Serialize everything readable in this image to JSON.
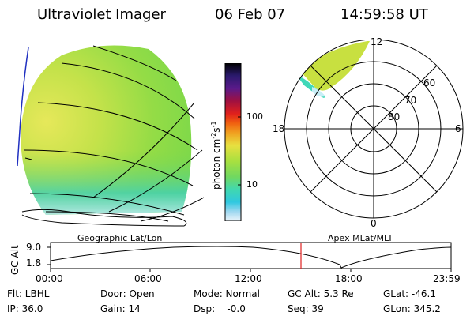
{
  "header": {
    "instrument": "Ultraviolet Imager",
    "date": "06 Feb 07",
    "time": "14:59:58 UT"
  },
  "globe_panel": {
    "label": "Geographic Lat/Lon"
  },
  "colorbar": {
    "unit_main": "photon cm",
    "unit_exp1": "-2",
    "unit_mid": "s",
    "unit_exp2": "-1",
    "ticks": [
      "100",
      "10"
    ],
    "colors": [
      "#000000",
      "#1a0a3a",
      "#2b1a6e",
      "#4a1a8a",
      "#7a1060",
      "#b0102a",
      "#e0201c",
      "#f05010",
      "#f08a10",
      "#f4c030",
      "#e8e040",
      "#c8e040",
      "#a0e040",
      "#70d860",
      "#40d8b0",
      "#30c8e0",
      "#a0d8f0",
      "#e8f4fb"
    ]
  },
  "polar_panel": {
    "label": "Apex  MLat/MLT",
    "mlt_labels": {
      "top": "12",
      "bottom": "0",
      "left": "18",
      "right": "6"
    },
    "lat_labels": [
      "60",
      "70",
      "80"
    ]
  },
  "altitude_strip": {
    "axis_label": "GC Alt",
    "y_ticks": [
      "9.0",
      "1.8"
    ],
    "x_ticks": [
      "00:00",
      "06:00",
      "12:00",
      "18:00",
      "23:59"
    ],
    "marker_time": "14:59:58",
    "marker_color": "#e02020"
  },
  "footer": {
    "flt": "Flt: LBHL",
    "ip": "IP: 36.0",
    "door": "Door: Open",
    "gain": "Gain: 14",
    "mode": "Mode: Normal",
    "dsp": "Dsp:    -0.0",
    "gcalt": "GC Alt: 5.3 Re",
    "seq": "Seq: 39",
    "glat": "GLat: -46.1",
    "glon": "GLon: 345.2"
  }
}
